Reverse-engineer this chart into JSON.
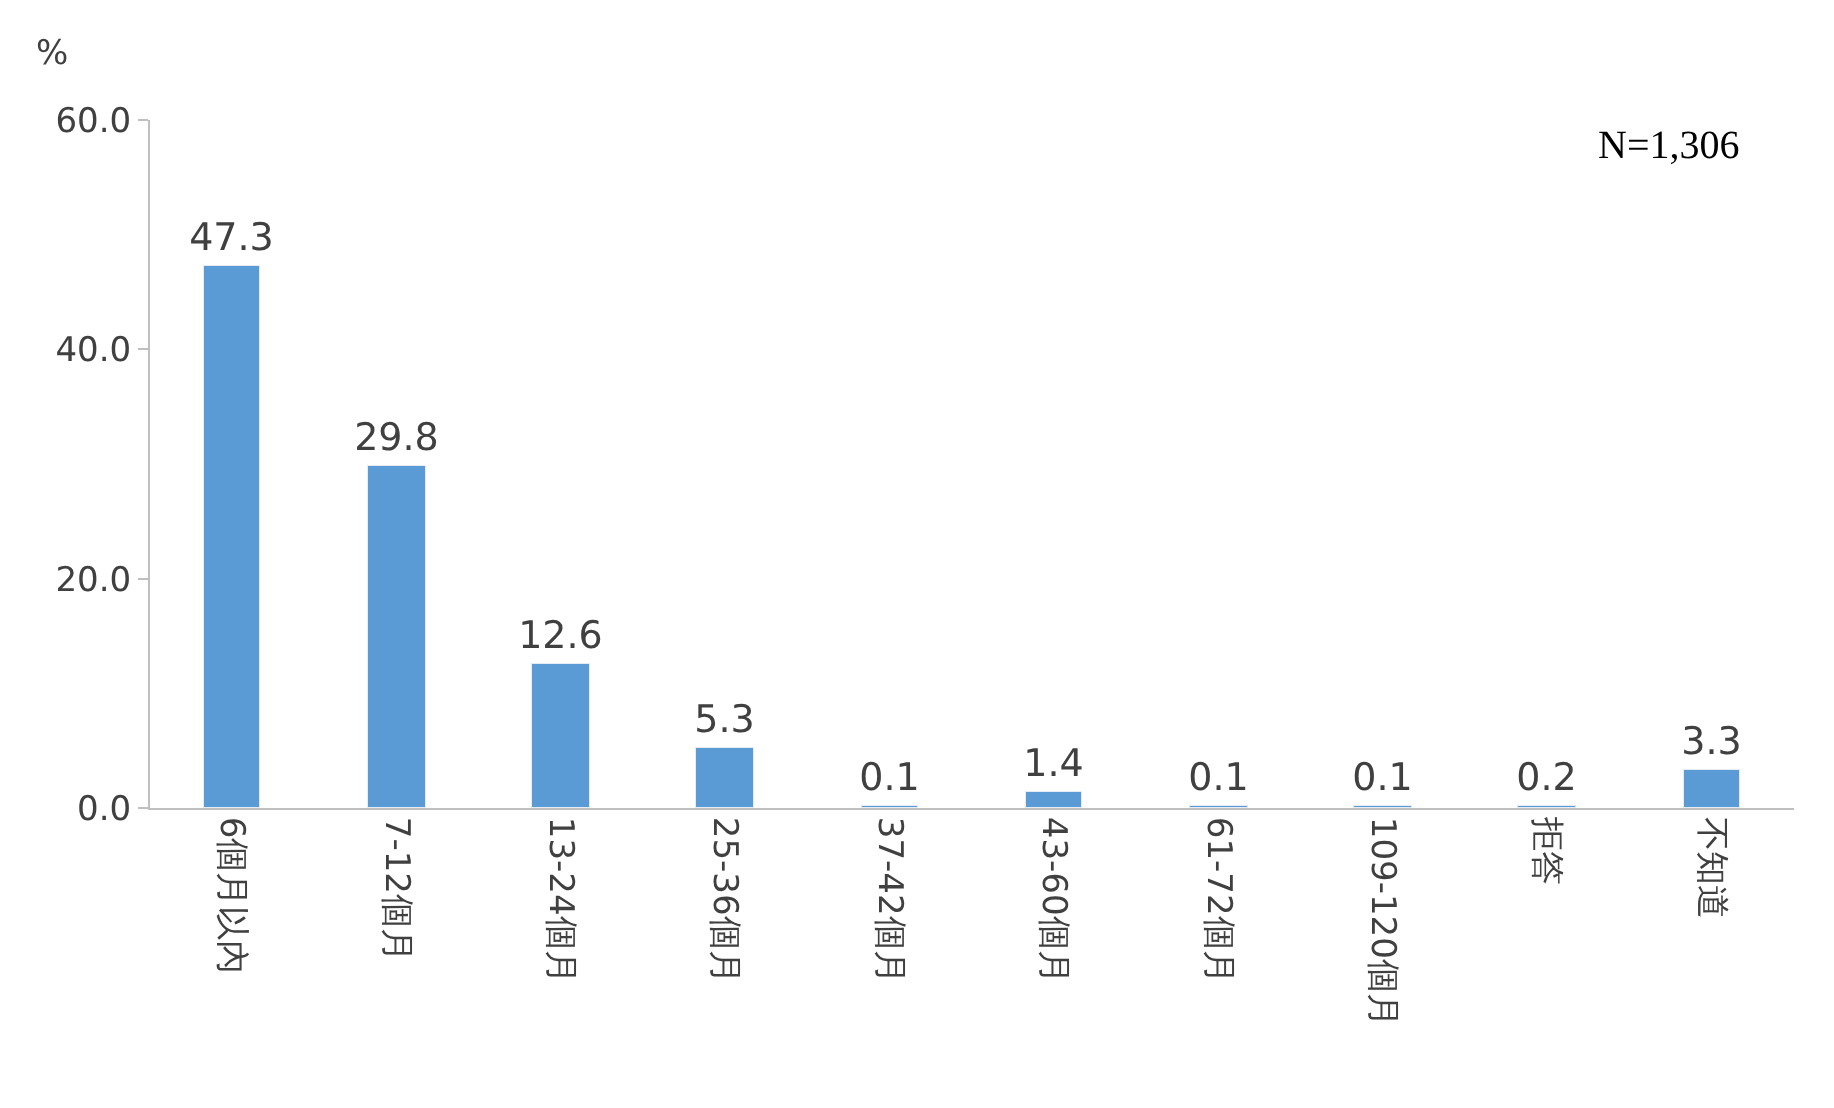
{
  "chart_data": {
    "type": "bar",
    "ylabel": "%",
    "categories": [
      "6個月以內",
      "7-12個月",
      "13-24個月",
      "25-36個月",
      "37-42個月",
      "43-60個月",
      "61-72個月",
      "109-120個月",
      "拒答",
      "不知道"
    ],
    "values": [
      47.3,
      29.8,
      12.6,
      5.3,
      0.1,
      1.4,
      0.1,
      0.1,
      0.2,
      3.3
    ],
    "color": "#5b9bd5",
    "ylim": [
      0,
      60
    ],
    "yticks": [
      {
        "value": 0,
        "label": "0.0"
      },
      {
        "value": 20,
        "label": "20.0"
      },
      {
        "value": 40,
        "label": "40.0"
      },
      {
        "value": 60,
        "label": "60.0"
      }
    ],
    "data_labels": true,
    "legend": false,
    "annotations": [
      "N=1,306"
    ]
  }
}
